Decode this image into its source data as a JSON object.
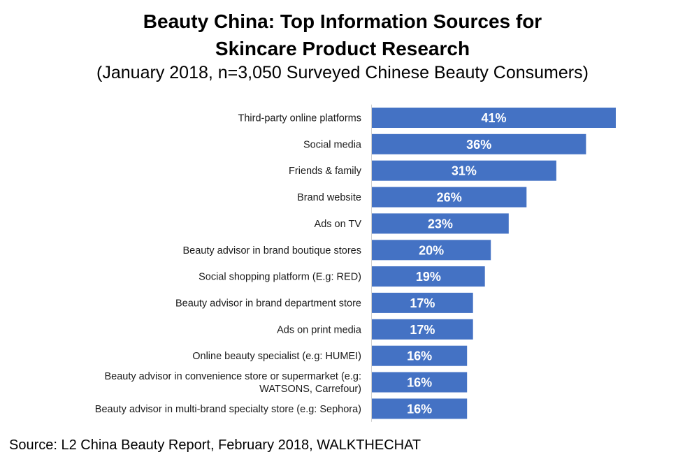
{
  "title_line1": "Beauty China: Top Information Sources for",
  "title_line2": "Skincare Product Research",
  "subtitle": "(January 2018, n=3,050 Surveyed Chinese Beauty Consumers)",
  "source": "Source: L2 China Beauty Report, February 2018, WALKTHECHAT",
  "bar_color": "#4472C4",
  "chart_data": {
    "type": "bar",
    "orientation": "horizontal",
    "title": "Beauty China: Top Information Sources for Skincare Product Research",
    "subtitle": "(January 2018, n=3,050 Surveyed Chinese Beauty Consumers)",
    "xlabel": "",
    "ylabel": "",
    "xlim": [
      0,
      41
    ],
    "value_suffix": "%",
    "grid": false,
    "legend": "none",
    "categories": [
      "Third-party online platforms",
      "Social media",
      "Friends & family",
      "Brand website",
      "Ads on TV",
      "Beauty advisor in brand boutique stores",
      "Social shopping platform (E.g: RED)",
      "Beauty advisor in brand department store",
      "Ads on print media",
      "Online beauty specialist (e.g: HUMEI)",
      "Beauty advisor in convenience store or supermarket (e.g: WATSONS, Carrefour)",
      "Beauty advisor in multi-brand specialty store (e.g: Sephora)"
    ],
    "category_lines": [
      [
        "Third-party online platforms"
      ],
      [
        "Social media"
      ],
      [
        "Friends & family"
      ],
      [
        "Brand website"
      ],
      [
        "Ads on TV"
      ],
      [
        "Beauty advisor in brand boutique stores"
      ],
      [
        "Social shopping platform (E.g: RED)"
      ],
      [
        "Beauty advisor in brand department store"
      ],
      [
        "Ads on print media"
      ],
      [
        "Online beauty specialist (e.g: HUMEI)"
      ],
      [
        "Beauty advisor in convenience store or supermarket (e.g:",
        "WATSONS, Carrefour)"
      ],
      [
        "Beauty advisor in multi-brand specialty store (e.g: Sephora)"
      ]
    ],
    "values": [
      41,
      36,
      31,
      26,
      23,
      20,
      19,
      17,
      17,
      16,
      16,
      16
    ],
    "data_labels": [
      "41%",
      "36%",
      "31%",
      "26%",
      "23%",
      "20%",
      "19%",
      "17%",
      "17%",
      "16%",
      "16%",
      "16%"
    ]
  }
}
